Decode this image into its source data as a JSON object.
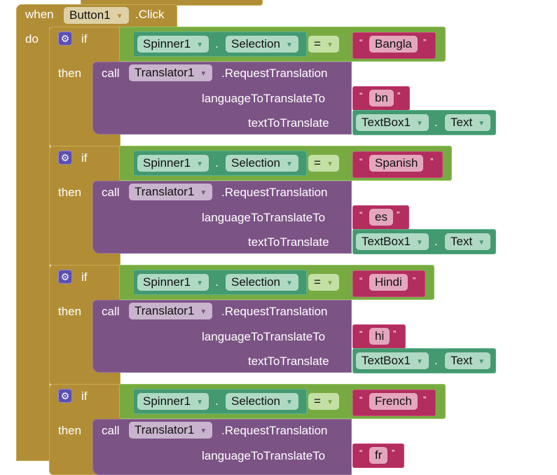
{
  "event": {
    "when": "when",
    "component": "Button1",
    "event": ".Click",
    "do": "do"
  },
  "labels": {
    "if": "if",
    "then": "then",
    "call": "call",
    "dot": ".",
    "method": ".RequestTranslation",
    "lang_param": "languageToTranslateTo",
    "text_param": "textToTranslate",
    "quote_open": "“",
    "quote_close": "”"
  },
  "getter": {
    "component": "Spinner1",
    "property": "Selection"
  },
  "operator": "=",
  "translator": "Translator1",
  "textbox": {
    "component": "TextBox1",
    "property": "Text"
  },
  "branches": [
    {
      "language": "Bangla",
      "code": "bn"
    },
    {
      "language": "Spanish",
      "code": "es"
    },
    {
      "language": "Hindi",
      "code": "hi"
    },
    {
      "language": "French",
      "code": "fr"
    }
  ],
  "colors": {
    "event": "#b18e35",
    "logic": "#77ab41",
    "component": "#439970",
    "text": "#b32d5e",
    "method": "#7c5385"
  }
}
